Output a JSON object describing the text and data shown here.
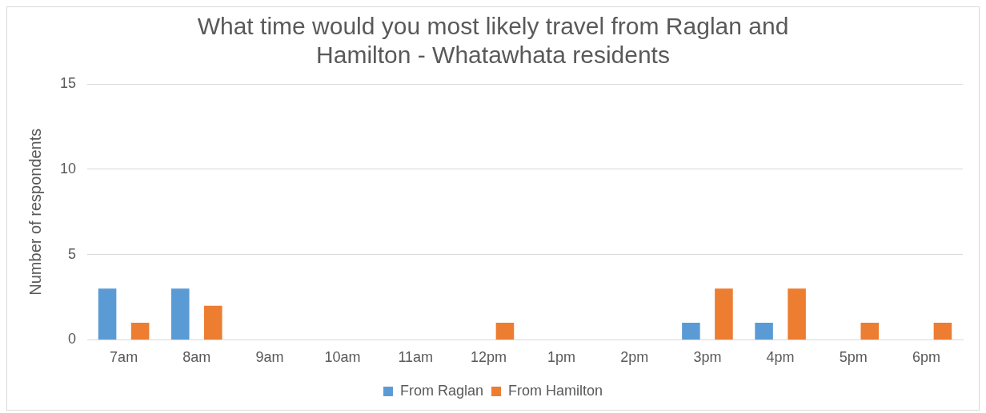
{
  "chart_data": {
    "type": "bar",
    "title": "What time would you most likely travel from Raglan and Hamilton - Whatawhata residents",
    "ylabel": "Number of respondents",
    "categories": [
      "7am",
      "8am",
      "9am",
      "10am",
      "11am",
      "12pm",
      "1pm",
      "2pm",
      "3pm",
      "4pm",
      "5pm",
      "6pm"
    ],
    "series": [
      {
        "name": "From Raglan",
        "color": "#5b9bd5",
        "values": [
          3,
          3,
          0,
          0,
          0,
          0,
          0,
          0,
          1,
          1,
          0,
          0
        ]
      },
      {
        "name": "From Hamilton",
        "color": "#ed7d31",
        "values": [
          1,
          2,
          0,
          0,
          0,
          1,
          0,
          0,
          3,
          3,
          1,
          1
        ]
      }
    ],
    "ylim": [
      0,
      15
    ],
    "yticks": [
      0,
      5,
      10,
      15
    ],
    "grid": "y",
    "legend": "bottom"
  }
}
